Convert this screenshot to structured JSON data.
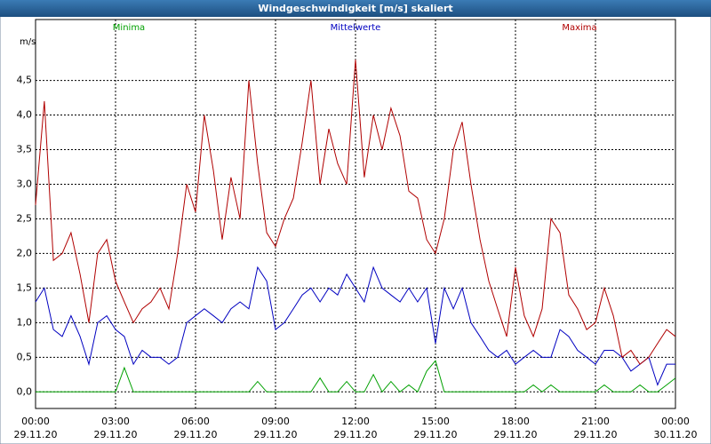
{
  "chart_data": {
    "type": "line",
    "title": "Windgeschwindigkeit [m/s] skaliert",
    "y_label": "m/s",
    "x": [
      0,
      0.33,
      0.67,
      1,
      1.33,
      1.67,
      2,
      2.33,
      2.67,
      3,
      3.33,
      3.67,
      4,
      4.33,
      4.67,
      5,
      5.33,
      5.67,
      6,
      6.33,
      6.67,
      7,
      7.33,
      7.67,
      8,
      8.33,
      8.67,
      9,
      9.33,
      9.67,
      10,
      10.33,
      10.67,
      11,
      11.33,
      11.67,
      12,
      12.33,
      12.67,
      13,
      13.33,
      13.67,
      14,
      14.33,
      14.67,
      15,
      15.33,
      15.67,
      16,
      16.33,
      16.67,
      17,
      17.33,
      17.67,
      18,
      18.33,
      18.67,
      19,
      19.33,
      19.67,
      20,
      20.33,
      20.67,
      21,
      21.33,
      21.67,
      22,
      22.33,
      22.67,
      23,
      23.33,
      23.67,
      24
    ],
    "series": [
      {
        "name": "Minima",
        "color": "#00a000",
        "values": [
          0,
          0,
          0,
          0,
          0,
          0,
          0,
          0,
          0,
          0,
          0.35,
          0,
          0,
          0,
          0,
          0,
          0,
          0,
          0,
          0,
          0,
          0,
          0,
          0,
          0,
          0.15,
          0,
          0,
          0,
          0,
          0,
          0,
          0.2,
          0,
          0,
          0.15,
          0,
          0,
          0.25,
          0,
          0.15,
          0,
          0.1,
          0,
          0.3,
          0.45,
          0,
          0,
          0,
          0,
          0,
          0,
          0,
          0,
          0,
          0,
          0.1,
          0,
          0.1,
          0,
          0,
          0,
          0,
          0,
          0.1,
          0,
          0,
          0,
          0.1,
          0,
          0,
          0.1,
          0.2
        ]
      },
      {
        "name": "Mittelwerte",
        "color": "#0000c0",
        "values": [
          1.3,
          1.5,
          0.9,
          0.8,
          1.1,
          0.8,
          0.4,
          1.0,
          1.1,
          0.9,
          0.8,
          0.4,
          0.6,
          0.5,
          0.5,
          0.4,
          0.5,
          1.0,
          1.1,
          1.2,
          1.1,
          1.0,
          1.2,
          1.3,
          1.2,
          1.8,
          1.6,
          0.9,
          1.0,
          1.2,
          1.4,
          1.5,
          1.3,
          1.5,
          1.4,
          1.7,
          1.5,
          1.3,
          1.8,
          1.5,
          1.4,
          1.3,
          1.5,
          1.3,
          1.5,
          0.7,
          1.5,
          1.2,
          1.5,
          1.0,
          0.8,
          0.6,
          0.5,
          0.6,
          0.4,
          0.5,
          0.6,
          0.5,
          0.5,
          0.9,
          0.8,
          0.6,
          0.5,
          0.4,
          0.6,
          0.6,
          0.5,
          0.3,
          0.4,
          0.5,
          0.1,
          0.4,
          0.4
        ]
      },
      {
        "name": "Maxima",
        "color": "#b00000",
        "values": [
          2.7,
          4.2,
          1.9,
          2.0,
          2.3,
          1.7,
          1.0,
          2.0,
          2.2,
          1.6,
          1.3,
          1.0,
          1.2,
          1.3,
          1.5,
          1.2,
          2.0,
          3.0,
          2.6,
          4.0,
          3.2,
          2.2,
          3.1,
          2.5,
          4.5,
          3.3,
          2.3,
          2.1,
          2.5,
          2.8,
          3.6,
          4.5,
          3.0,
          3.8,
          3.3,
          3.0,
          4.8,
          3.1,
          4.0,
          3.5,
          4.1,
          3.7,
          2.9,
          2.8,
          2.2,
          2.0,
          2.5,
          3.5,
          3.9,
          3.0,
          2.2,
          1.6,
          1.2,
          0.8,
          1.8,
          1.1,
          0.8,
          1.2,
          2.5,
          2.3,
          1.4,
          1.2,
          0.9,
          1.0,
          1.5,
          1.1,
          0.5,
          0.6,
          0.4,
          0.5,
          0.7,
          0.9,
          0.8
        ]
      }
    ],
    "xlim": [
      0,
      24
    ],
    "xticks": [
      {
        "value": 0,
        "label": [
          "00:00",
          "29.11.20"
        ]
      },
      {
        "value": 3,
        "label": [
          "03:00",
          "29.11.20"
        ]
      },
      {
        "value": 6,
        "label": [
          "06:00",
          "29.11.20"
        ]
      },
      {
        "value": 9,
        "label": [
          "09:00",
          "29.11.20"
        ]
      },
      {
        "value": 12,
        "label": [
          "12:00",
          "29.11.20"
        ]
      },
      {
        "value": 15,
        "label": [
          "15:00",
          "29.11.20"
        ]
      },
      {
        "value": 18,
        "label": [
          "18:00",
          "29.11.20"
        ]
      },
      {
        "value": 21,
        "label": [
          "21:00",
          "29.11.20"
        ]
      },
      {
        "value": 24,
        "label": [
          "00:00",
          "30.11.20"
        ]
      }
    ],
    "ylim": [
      -0.24,
      5.38
    ],
    "yticks": [
      {
        "value": 0,
        "label": "0,0"
      },
      {
        "value": 0.5,
        "label": "0,5"
      },
      {
        "value": 1,
        "label": "1,0"
      },
      {
        "value": 1.5,
        "label": "1,5"
      },
      {
        "value": 2,
        "label": "2,0"
      },
      {
        "value": 2.5,
        "label": "2,5"
      },
      {
        "value": 3,
        "label": "3,0"
      },
      {
        "value": 3.5,
        "label": "3,5"
      },
      {
        "value": 4,
        "label": "4,0"
      },
      {
        "value": 4.5,
        "label": "4,5"
      }
    ],
    "grid": true
  }
}
